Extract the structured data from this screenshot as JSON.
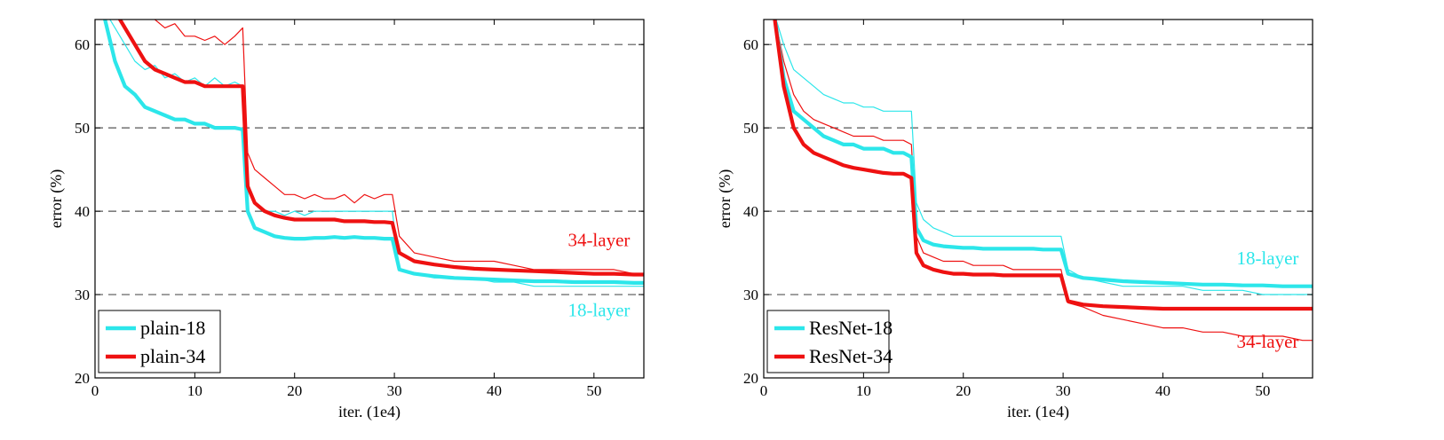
{
  "colors": {
    "cyan": "#2ce6ea",
    "red": "#ee1111",
    "grid": "#555555"
  },
  "chart_data": [
    {
      "type": "line",
      "xlabel": "iter. (1e4)",
      "ylabel": "error (%)",
      "xlim": [
        0,
        55
      ],
      "ylim": [
        20,
        63
      ],
      "xticks": [
        0,
        10,
        20,
        30,
        40,
        50
      ],
      "yticks": [
        20,
        30,
        40,
        50,
        60
      ],
      "grid": "horizontal-dashed",
      "legend": {
        "placement": "bottom-left",
        "entries": [
          "plain-18",
          "plain-34"
        ]
      },
      "annotations": [
        {
          "text": "34-layer",
          "color": "red",
          "x": 50.5,
          "y": 35.8
        },
        {
          "text": "18-layer",
          "color": "cyan",
          "x": 50.5,
          "y": 27.4
        }
      ],
      "series": [
        {
          "name": "plain-18",
          "color": "cyan",
          "thin": {
            "x": [
              1,
              2,
              3,
              4,
              5,
              6,
              7,
              8,
              9,
              10,
              11,
              12,
              13,
              14,
              14.8,
              15.3,
              16,
              17,
              18,
              19,
              20,
              21,
              22,
              23,
              24,
              25,
              26,
              27,
              28,
              29,
              29.8,
              30.5,
              32,
              34,
              36,
              38,
              40,
              42,
              44,
              46,
              48,
              50,
              52,
              54,
              55
            ],
            "y": [
              64,
              62,
              60,
              58,
              57,
              57.5,
              56,
              56.5,
              55.5,
              56,
              55,
              56,
              55,
              55.5,
              55,
              43,
              41,
              40,
              40,
              39.5,
              40,
              39.5,
              40,
              40,
              40,
              40,
              40,
              40,
              40,
              40,
              40,
              33,
              32.5,
              32,
              32,
              32,
              31.5,
              31.5,
              31,
              31,
              31,
              31,
              31,
              31,
              31
            ]
          },
          "thick": {
            "x": [
              1,
              2,
              3,
              4,
              5,
              6,
              7,
              8,
              9,
              10,
              11,
              12,
              13,
              14,
              14.8,
              15.3,
              16,
              17,
              18,
              19,
              20,
              21,
              22,
              23,
              24,
              25,
              26,
              27,
              28,
              29,
              29.8,
              30.5,
              32,
              34,
              36,
              38,
              40,
              42,
              44,
              46,
              48,
              50,
              52,
              54,
              55
            ],
            "y": [
              63,
              58,
              55,
              54,
              52.5,
              52,
              51.5,
              51,
              51,
              50.5,
              50.5,
              50,
              50,
              50,
              49.8,
              40,
              38,
              37.5,
              37,
              36.8,
              36.7,
              36.7,
              36.8,
              36.8,
              36.9,
              36.8,
              36.9,
              36.8,
              36.8,
              36.7,
              36.7,
              33,
              32.5,
              32.2,
              32,
              31.9,
              31.8,
              31.7,
              31.6,
              31.6,
              31.5,
              31.5,
              31.5,
              31.4,
              31.4
            ]
          }
        },
        {
          "name": "plain-34",
          "color": "red",
          "thin": {
            "x": [
              6,
              7,
              8,
              9,
              10,
              11,
              12,
              13,
              14,
              14.8,
              15.3,
              16,
              17,
              18,
              19,
              20,
              21,
              22,
              23,
              24,
              25,
              26,
              27,
              28,
              29,
              29.8,
              30.5,
              32,
              34,
              36,
              38,
              40,
              42,
              44,
              46,
              48,
              50,
              52,
              54,
              55
            ],
            "y": [
              63,
              62,
              62.5,
              61,
              61,
              60.5,
              61,
              60,
              61,
              62,
              47,
              45,
              44,
              43,
              42,
              42,
              41.5,
              42,
              41.5,
              41.5,
              42,
              41,
              42,
              41.5,
              42,
              42,
              37,
              35,
              34.5,
              34,
              34,
              34,
              33.5,
              33,
              33,
              33,
              33,
              33,
              32.5,
              32.5
            ]
          },
          "thick": {
            "x": [
              2.5,
              3,
              4,
              5,
              6,
              7,
              8,
              9,
              10,
              11,
              12,
              13,
              14,
              14.8,
              15.3,
              16,
              17,
              18,
              19,
              20,
              21,
              22,
              23,
              24,
              25,
              26,
              27,
              28,
              29,
              29.8,
              30.5,
              32,
              34,
              36,
              38,
              40,
              42,
              44,
              46,
              48,
              50,
              52,
              54,
              55
            ],
            "y": [
              63,
              62,
              60,
              58,
              57,
              56.5,
              56,
              55.5,
              55.5,
              55,
              55,
              55,
              55,
              55,
              43,
              41,
              40,
              39.5,
              39.2,
              39,
              39,
              39,
              39,
              39,
              38.8,
              38.8,
              38.8,
              38.7,
              38.7,
              38.6,
              35,
              34,
              33.6,
              33.3,
              33.1,
              33,
              32.9,
              32.8,
              32.7,
              32.6,
              32.5,
              32.5,
              32.4,
              32.4
            ]
          }
        }
      ]
    },
    {
      "type": "line",
      "xlabel": "iter. (1e4)",
      "ylabel": "error (%)",
      "xlim": [
        0,
        55
      ],
      "ylim": [
        20,
        63
      ],
      "xticks": [
        0,
        10,
        20,
        30,
        40,
        50
      ],
      "yticks": [
        20,
        30,
        40,
        50,
        60
      ],
      "grid": "horizontal-dashed",
      "legend": {
        "placement": "bottom-left",
        "entries": [
          "ResNet-18",
          "ResNet-34"
        ]
      },
      "annotations": [
        {
          "text": "18-layer",
          "color": "cyan",
          "x": 50.5,
          "y": 33.6
        },
        {
          "text": "34-layer",
          "color": "red",
          "x": 50.5,
          "y": 23.6
        }
      ],
      "series": [
        {
          "name": "ResNet-18",
          "color": "cyan",
          "thin": {
            "x": [
              1,
              2,
              3,
              4,
              5,
              6,
              7,
              8,
              9,
              10,
              11,
              12,
              13,
              14,
              14.8,
              15.3,
              16,
              17,
              18,
              19,
              20,
              21,
              22,
              23,
              24,
              25,
              26,
              27,
              28,
              29,
              29.8,
              30.5,
              32,
              34,
              36,
              38,
              40,
              42,
              44,
              46,
              48,
              50,
              52,
              54,
              55
            ],
            "y": [
              64,
              60,
              57,
              56,
              55,
              54,
              53.5,
              53,
              53,
              52.5,
              52.5,
              52,
              52,
              52,
              52,
              41,
              39,
              38,
              37.5,
              37,
              37,
              37,
              37,
              37,
              37,
              37,
              37,
              37,
              37,
              37,
              37,
              33,
              32,
              31.5,
              31,
              31,
              31,
              31,
              30.5,
              30.5,
              30.5,
              30,
              30,
              30,
              30
            ]
          },
          "thick": {
            "x": [
              1,
              2,
              3,
              4,
              5,
              6,
              7,
              8,
              9,
              10,
              11,
              12,
              13,
              14,
              14.8,
              15.3,
              16,
              17,
              18,
              19,
              20,
              21,
              22,
              23,
              24,
              25,
              26,
              27,
              28,
              29,
              29.8,
              30.5,
              32,
              34,
              36,
              38,
              40,
              42,
              44,
              46,
              48,
              50,
              52,
              54,
              55
            ],
            "y": [
              64,
              56,
              52,
              51,
              50,
              49,
              48.5,
              48,
              48,
              47.5,
              47.5,
              47.5,
              47,
              47,
              46.5,
              38,
              36.5,
              36,
              35.8,
              35.7,
              35.6,
              35.6,
              35.5,
              35.5,
              35.5,
              35.5,
              35.5,
              35.5,
              35.4,
              35.4,
              35.4,
              32.5,
              32,
              31.8,
              31.6,
              31.5,
              31.4,
              31.3,
              31.2,
              31.2,
              31.1,
              31.1,
              31,
              31,
              31
            ]
          }
        },
        {
          "name": "ResNet-34",
          "color": "red",
          "thin": {
            "x": [
              1,
              2,
              3,
              4,
              5,
              6,
              7,
              8,
              9,
              10,
              11,
              12,
              13,
              14,
              14.8,
              15.3,
              16,
              17,
              18,
              19,
              20,
              21,
              22,
              23,
              24,
              25,
              26,
              27,
              28,
              29,
              29.8,
              30.5,
              32,
              34,
              36,
              38,
              40,
              42,
              44,
              46,
              48,
              50,
              52,
              54,
              55
            ],
            "y": [
              64,
              58,
              54,
              52,
              51,
              50.5,
              50,
              49.5,
              49,
              49,
              49,
              48.5,
              48.5,
              48.5,
              48,
              37,
              35,
              34.5,
              34,
              34,
              34,
              33.5,
              33.5,
              33.5,
              33.5,
              33,
              33,
              33,
              33,
              33,
              33,
              29,
              28.5,
              27.5,
              27,
              26.5,
              26,
              26,
              25.5,
              25.5,
              25,
              25,
              25,
              24.5,
              24.5
            ]
          },
          "thick": {
            "x": [
              1,
              2,
              3,
              4,
              5,
              6,
              7,
              8,
              9,
              10,
              11,
              12,
              13,
              14,
              14.8,
              15.3,
              16,
              17,
              18,
              19,
              20,
              21,
              22,
              23,
              24,
              25,
              26,
              27,
              28,
              29,
              29.8,
              30.5,
              32,
              34,
              36,
              38,
              40,
              42,
              44,
              46,
              48,
              50,
              52,
              54,
              55
            ],
            "y": [
              64,
              55,
              50,
              48,
              47,
              46.5,
              46,
              45.5,
              45.2,
              45,
              44.8,
              44.6,
              44.5,
              44.5,
              44,
              35,
              33.5,
              33,
              32.7,
              32.5,
              32.5,
              32.4,
              32.4,
              32.4,
              32.3,
              32.3,
              32.3,
              32.3,
              32.3,
              32.3,
              32.3,
              29.2,
              28.8,
              28.6,
              28.5,
              28.4,
              28.3,
              28.3,
              28.3,
              28.3,
              28.3,
              28.3,
              28.3,
              28.3,
              28.3
            ]
          }
        }
      ]
    }
  ]
}
